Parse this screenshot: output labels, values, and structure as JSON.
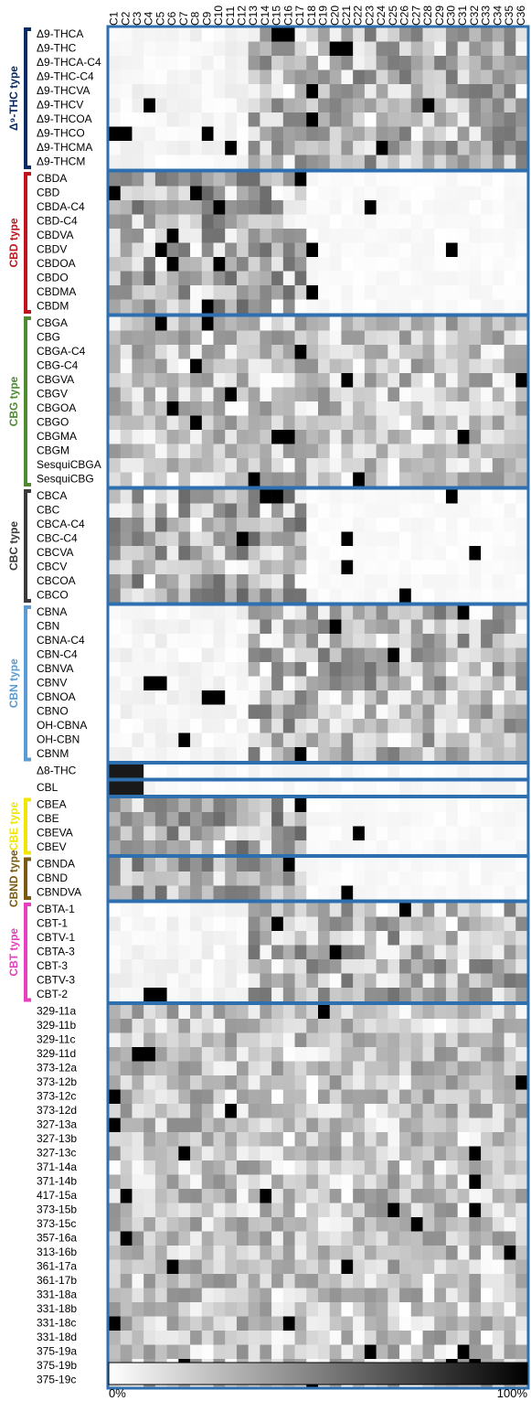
{
  "chart_data": {
    "type": "heatmap",
    "columns": [
      "C1",
      "C2",
      "C3",
      "C4",
      "C5",
      "C6",
      "C7",
      "C8",
      "C9",
      "C10",
      "C11",
      "C12",
      "C13",
      "C14",
      "C15",
      "C16",
      "C17",
      "C18",
      "C19",
      "C20",
      "C21",
      "C22",
      "C23",
      "C24",
      "C25",
      "C26",
      "C27",
      "C28",
      "C29",
      "C30",
      "C31",
      "C32",
      "C33",
      "C34",
      "C35",
      "C36"
    ],
    "groups": [
      {
        "label": "Δ⁹-THC type",
        "color": "#0a2a66",
        "rows": [
          "Δ9-THCA",
          "Δ9-THC",
          "Δ9-THCA-C4",
          "Δ9-THC-C4",
          "Δ9-THCVA",
          "Δ9-THCV",
          "Δ9-THCOA",
          "Δ9-THCO",
          "Δ9-THCMA",
          "Δ9-THCM"
        ]
      },
      {
        "label": "CBD type",
        "color": "#c0141c",
        "rows": [
          "CBDA",
          "CBD",
          "CBDA-C4",
          "CBD-C4",
          "CBDVA",
          "CBDV",
          "CBDOA",
          "CBDO",
          "CBDMA",
          "CBDM"
        ]
      },
      {
        "label": "CBG type",
        "color": "#4e8a30",
        "rows": [
          "CBGA",
          "CBG",
          "CBGA-C4",
          "CBG-C4",
          "CBGVA",
          "CBGV",
          "CBGOA",
          "CBGO",
          "CBGMA",
          "CBGM",
          "SesquiCBGA",
          "SesquiCBG"
        ]
      },
      {
        "label": "CBC type",
        "color": "#3a3a3a",
        "rows": [
          "CBCA",
          "CBC",
          "CBCA-C4",
          "CBC-C4",
          "CBCVA",
          "CBCV",
          "CBCOA",
          "CBCO"
        ]
      },
      {
        "label": "CBN type",
        "color": "#5b9bd5",
        "rows": [
          "CBNA",
          "CBN",
          "CBNA-C4",
          "CBN-C4",
          "CBNVA",
          "CBNV",
          "CBNOA",
          "CBNO",
          "OH-CBNA",
          "OH-CBN",
          "CBNM"
        ]
      },
      {
        "label": "",
        "color": "",
        "rows": [
          "Δ8-THC"
        ]
      },
      {
        "label": "",
        "color": "",
        "rows": [
          "CBL"
        ]
      },
      {
        "label": "CBE type",
        "color": "#f2e600",
        "rows": [
          "CBEA",
          "CBE",
          "CBEVA",
          "CBEV"
        ]
      },
      {
        "label": "CBND type",
        "color": "#7a5a10",
        "rows": [
          "CBNDA",
          "CBND",
          "CBNDVA"
        ]
      },
      {
        "label": "CBT type",
        "color": "#e83ec0",
        "rows": [
          "CBTA-1",
          "CBT-1",
          "CBTV-1",
          "CBTA-3",
          "CBT-3",
          "CBTV-3",
          "CBT-2"
        ]
      },
      {
        "label": "",
        "color": "",
        "rows": [
          "329-11a",
          "329-11b",
          "329-11c",
          "329-11d",
          "373-12a",
          "373-12b",
          "373-12c",
          "373-12d",
          "327-13a",
          "327-13b",
          "327-13c",
          "371-14a",
          "371-14b",
          "417-15a",
          "373-15b",
          "373-15c",
          "357-16a",
          "313-16b",
          "361-17a",
          "361-17b",
          "331-18a",
          "331-18b",
          "331-18c",
          "331-18d",
          "375-19a",
          "375-19b",
          "375-19c"
        ]
      }
    ],
    "colorbar": {
      "min_label": "0%",
      "max_label": "100%",
      "low_color": "#ffffff",
      "high_color": "#000000"
    },
    "frame_color": "#2e6fb0"
  }
}
